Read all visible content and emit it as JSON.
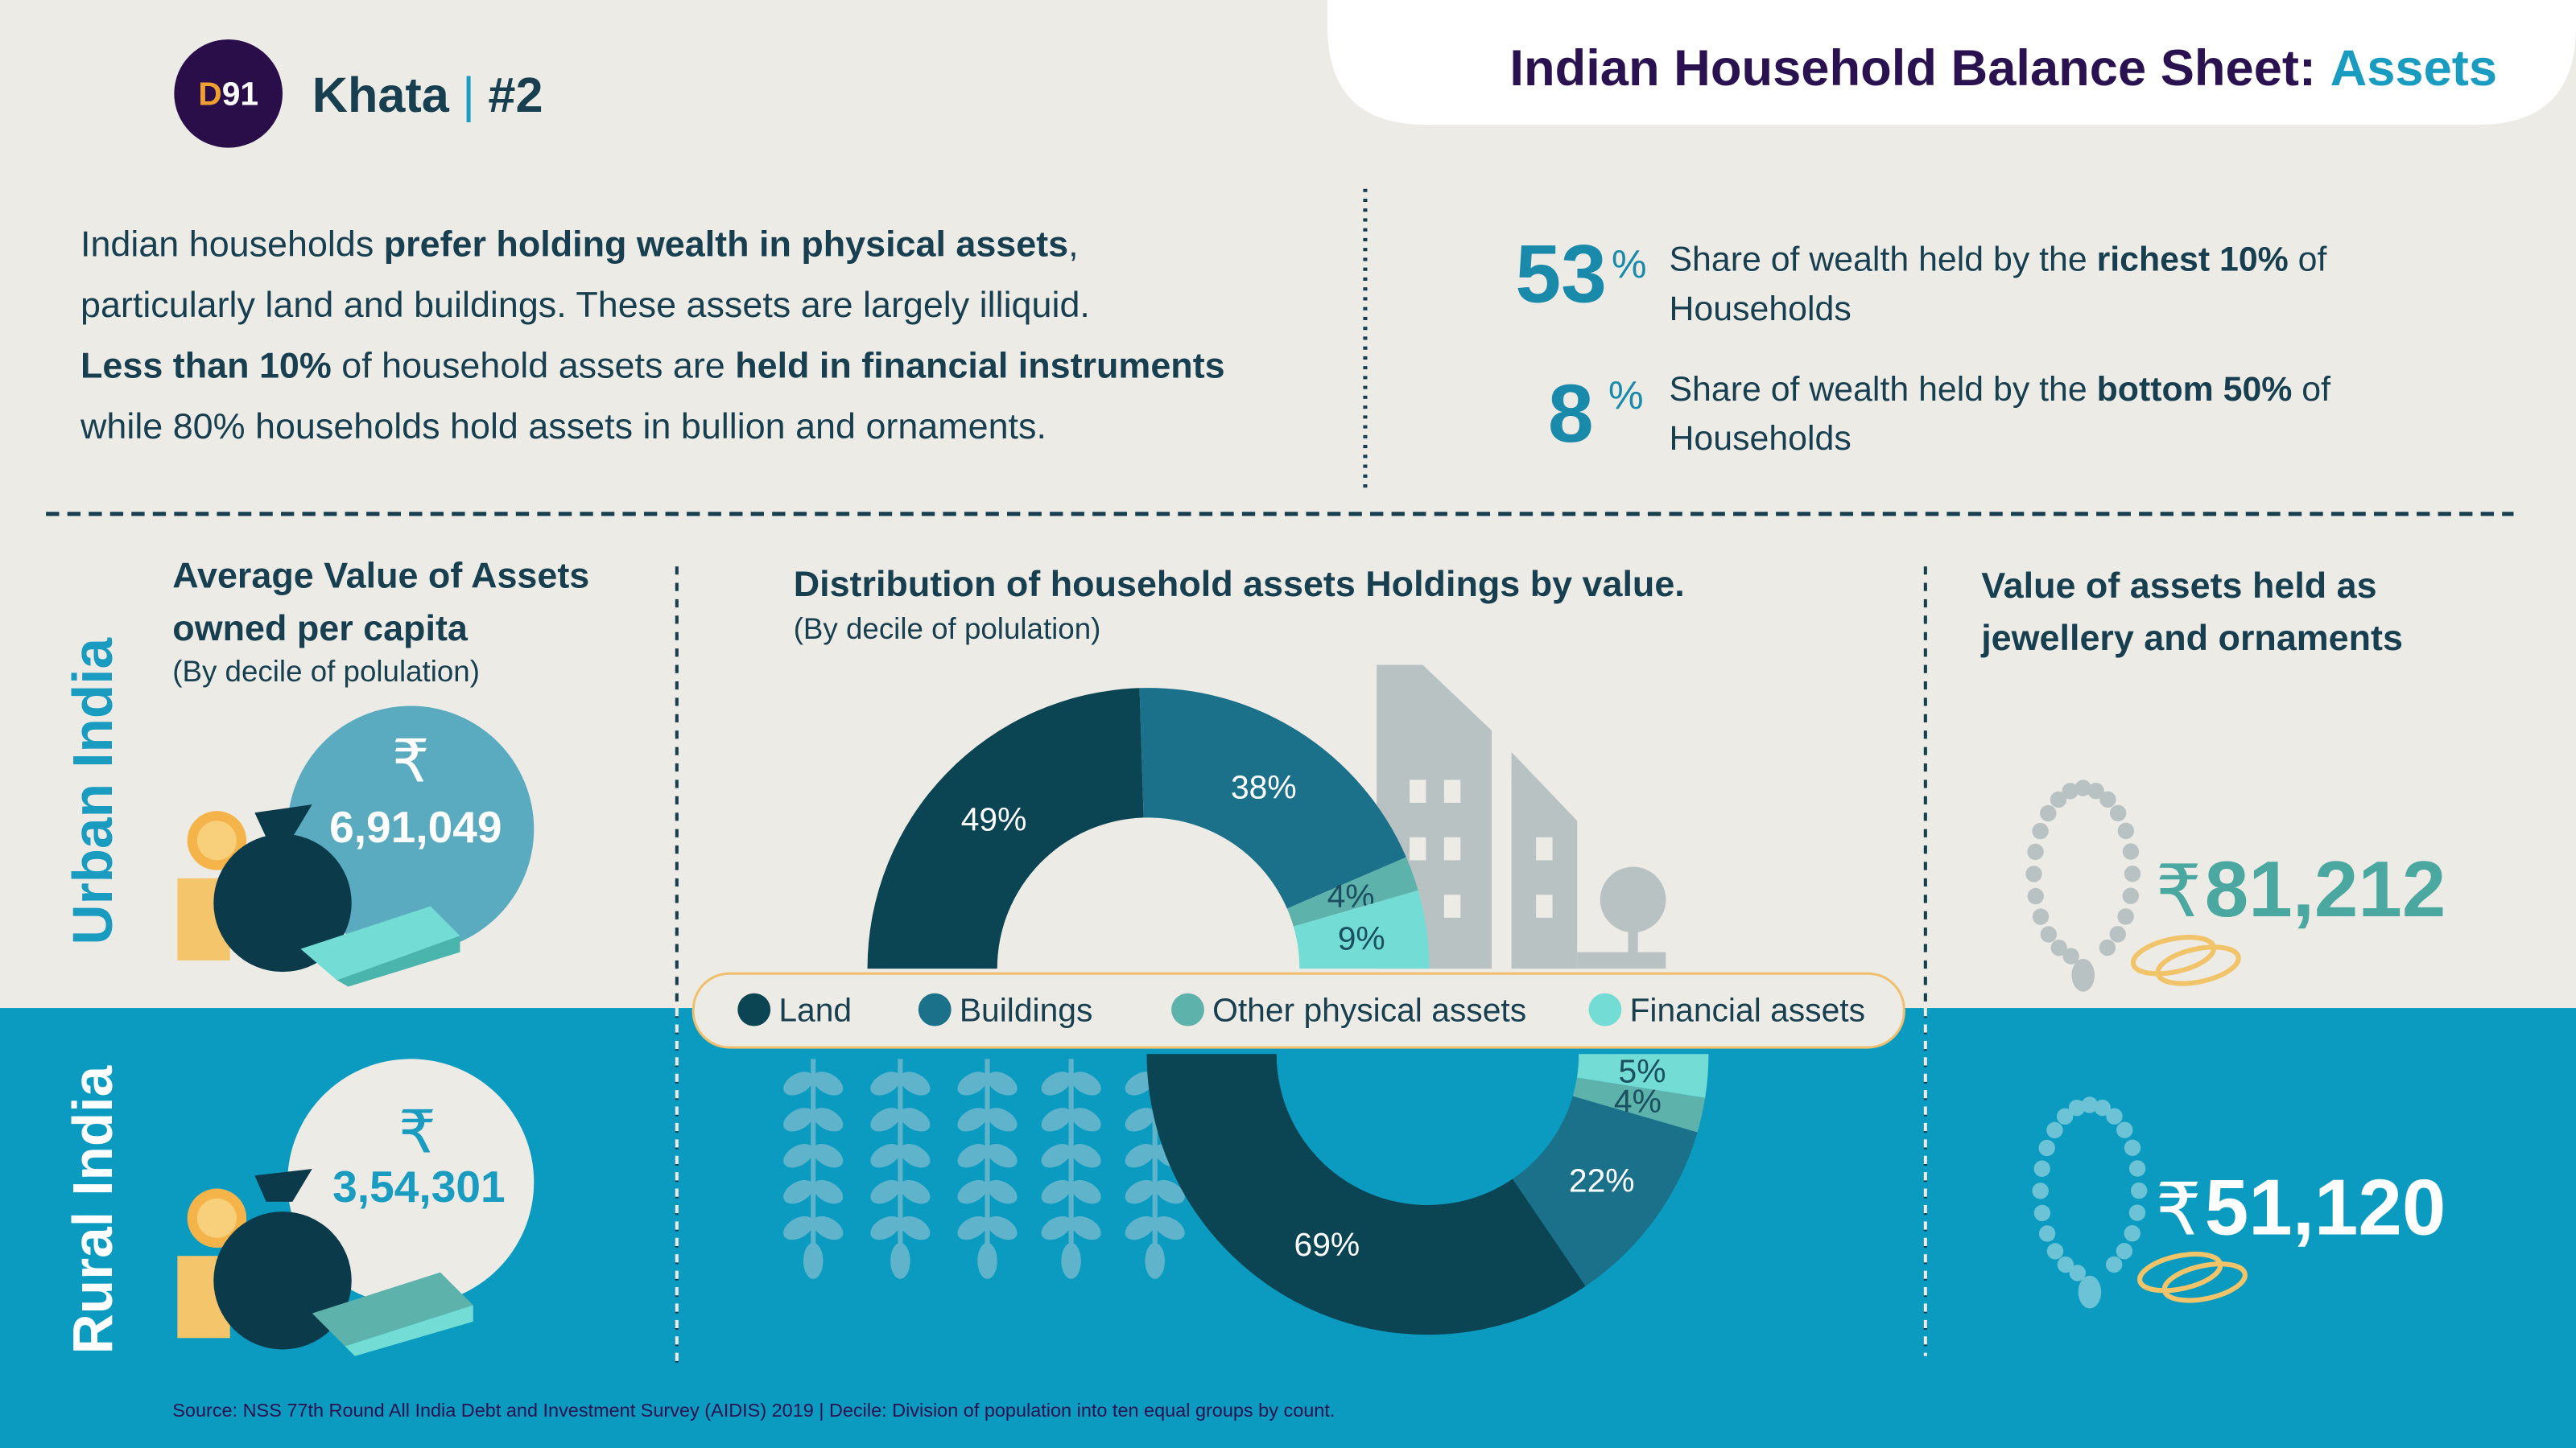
{
  "header": {
    "logo": [
      "D",
      "91"
    ],
    "series": "Khata",
    "separator": "|",
    "issue": "#2",
    "title": "Indian Household Balance Sheet: ",
    "title_highlight": "Assets"
  },
  "intro": [
    [
      "Indian households ",
      "prefer holding wealth in physical assets",
      ","
    ],
    [
      "particularly land and buildings. These assets are largely illiquid."
    ],
    [
      "Less than 10%",
      " of household assets are ",
      "held in financial instruments"
    ],
    [
      "while 80% households hold assets in bullion and ornaments."
    ]
  ],
  "stats": [
    {
      "value": "53",
      "unit": "%",
      "line1": [
        "Share of wealth held by the ",
        "richest 10%",
        " of"
      ],
      "line2": "Households"
    },
    {
      "value": "8",
      "unit": "%",
      "line1": [
        "Share of wealth held by the ",
        "bottom 50%",
        " of"
      ],
      "line2": "Households"
    }
  ],
  "sections": {
    "average": {
      "title": [
        "Average Value of Assets",
        "owned per capita"
      ],
      "note": "(By decile of polulation)"
    },
    "distribution": {
      "title": "Distribution of household assets Holdings by value.",
      "note": "(By decile of polulation)"
    },
    "jewellery": {
      "title": [
        "Value of assets held as",
        "jewellery and ornaments"
      ]
    }
  },
  "currency": "₹",
  "regions": [
    {
      "name": "Urban India",
      "average": "6,91,049",
      "jewellery": "81,212"
    },
    {
      "name": "Rural India",
      "average": "3,54,301",
      "jewellery": "51,120"
    }
  ],
  "chart_data": [
    {
      "type": "pie",
      "categories": [
        "Land",
        "Buildings",
        "Other physical assets",
        "Financial assets"
      ],
      "values": [
        49,
        38,
        4,
        9
      ],
      "value_labels": [
        "49%",
        "38%",
        "4%",
        "9%"
      ],
      "colors": [
        "#0b4453",
        "#1b7189",
        "#5db2ab",
        "#73dcd5"
      ]
    },
    {
      "type": "pie",
      "categories": [
        "Land",
        "Buildings",
        "Other physical assets",
        "Financial assets"
      ],
      "values": [
        69,
        22,
        4,
        5
      ],
      "value_labels": [
        "69%",
        "22%",
        "4%",
        "5%"
      ],
      "colors": [
        "#0b4453",
        "#1b7189",
        "#5db2ab",
        "#73dcd5"
      ]
    }
  ],
  "footer": "Source: NSS 77th Round All India Debt and Investment Survey (AIDIS) 2019 | Decile: Division of population into ten equal groups by count."
}
